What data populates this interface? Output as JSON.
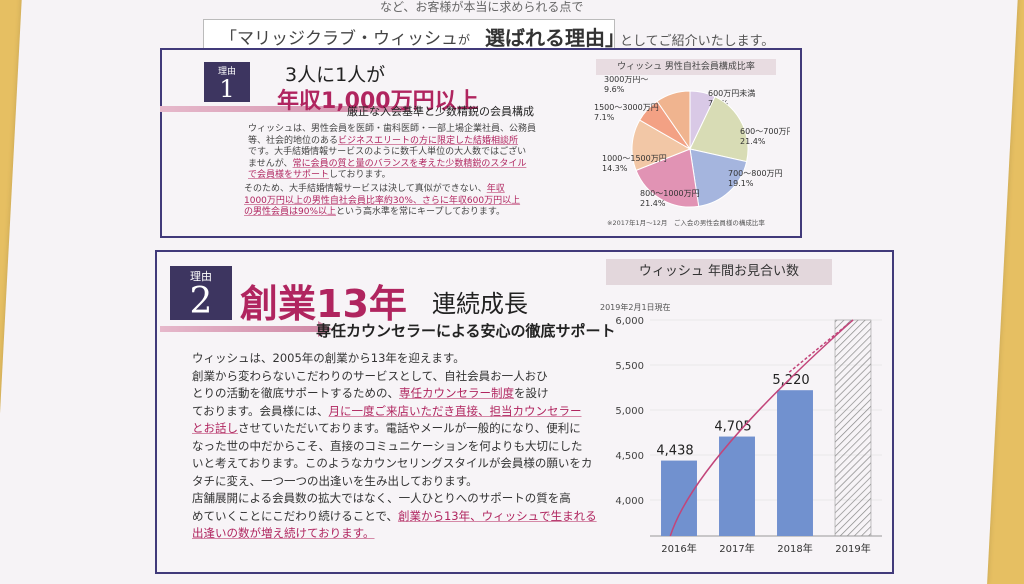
{
  "header": {
    "top_cut": "など、お客様が本当に求められる点で",
    "club_name": "マリッジクラブ・ウィッシュ",
    "mid": "が",
    "strong": "選ばれる理由",
    "tail": "としてご紹介いたします。"
  },
  "reason1": {
    "label": "理由",
    "number": "1",
    "title": "3人に1人が",
    "subtitle": "年収1,000万円以上",
    "desc": "厳正な入会基準と少数精鋭の会員構成",
    "p1_lines": [
      "ウィッシュは、男性会員を医師・歯科医師・一部上場企業社員、公務員",
      "等、社会的地位のある",
      "ビジネスエリートの方に限定した結婚相談所",
      "です。大手結婚情報サービスのように数千人単位の大人数ではござい",
      "ませんが、",
      "常に会員の質と量のバランスを考えた少数精鋭のスタイル",
      "で会員様をサポート",
      "しております。"
    ],
    "p2_lines": [
      "そのため、大手結婚情報サービスは決して真似ができない、",
      "年収",
      "1000万円以上の男性自社会員比率約30%、さらに年収600万円以上",
      "の男性会員は90%以上",
      "という高水準を常にキープしております。"
    ]
  },
  "chart1": {
    "title": "ウィッシュ 男性自社会員構成比率",
    "note": "※2017年1月〜12月　ご入会の男性会員様の構成比率",
    "slices": [
      {
        "label": "600万円未満",
        "value": 7.1,
        "display": "7.1%",
        "color": "#d9c9e6"
      },
      {
        "label": "600〜700万円",
        "value": 21.4,
        "display": "21.4%",
        "color": "#d8dcb5"
      },
      {
        "label": "700〜800万円",
        "value": 19.1,
        "display": "19.1%",
        "color": "#a5b5de"
      },
      {
        "label": "800〜1000万円",
        "value": 21.4,
        "display": "21.4%",
        "color": "#e193b4"
      },
      {
        "label": "1000〜1500万円",
        "value": 14.3,
        "display": "14.3%",
        "color": "#f2c7a6"
      },
      {
        "label": "1500〜3000万円",
        "value": 7.1,
        "display": "7.1%",
        "color": "#f3a184"
      },
      {
        "label": "3000万円〜",
        "value": 9.6,
        "display": "9.6%",
        "color": "#f0b48f"
      }
    ]
  },
  "reason2": {
    "label": "理由",
    "number": "2",
    "title_big": "創業13年",
    "title_tail": "連続成長",
    "subtitle": "専任カウンセラーによる安心の徹底サポート",
    "lines": [
      [
        "ウィッシュは、2005年の創業から13年を迎えます。"
      ],
      [
        "創業から変わらないこだわりのサービスとして、自社会員お一人おひ"
      ],
      [
        "とりの活動を徹底サポートするための、",
        "!専任カウンセラー制度",
        "を設け"
      ],
      [
        "ております。会員様には、",
        "!月に一度ご来店いただき直接、担当カウンセラー"
      ],
      [
        "!とお話し",
        "させていただいております。電話やメールが一般的になり、便利に"
      ],
      [
        "なった世の中だからこそ、直接のコミュニケーションを何よりも大切にした"
      ],
      [
        "いと考えております。このようなカウンセリングスタイルが会員様の願いをカ"
      ],
      [
        "タチに変え、一つ一つの出逢いを生み出しております。"
      ],
      [
        "店舗展開による会員数の拡大ではなく、一人ひとりへのサポートの質を高"
      ],
      [
        "めていくことにこだわり続けることで、",
        "!創業から13年、ウィッシュで生まれる"
      ],
      [
        "!出逢いの数が増え続けております。"
      ]
    ]
  },
  "chart_data": {
    "type": "bar",
    "title": "ウィッシュ 年間お見合い数",
    "subtitle": "2019年2月1日現在",
    "categories": [
      "2016年",
      "2017年",
      "2018年",
      "2019年"
    ],
    "values": [
      4438,
      4705,
      5220,
      null
    ],
    "value_labels": [
      "4,438",
      "4,705",
      "5,220",
      ""
    ],
    "projected_category": "2019年",
    "yticks": [
      "4,000",
      "4,500",
      "5,000",
      "5,500",
      "6,000"
    ],
    "ylim": [
      3600,
      6000
    ],
    "bar_color": "#7191cf",
    "trend_color": "#c2457a"
  }
}
